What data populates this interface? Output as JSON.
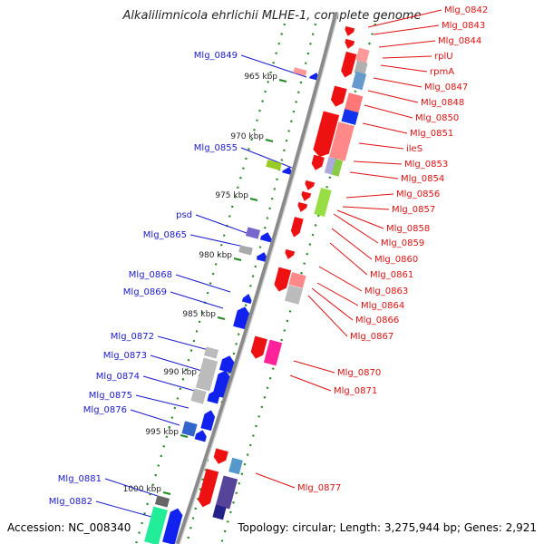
{
  "title": "Alkalilimnicola ehrlichii MLHE-1, complete genome",
  "footer": {
    "accession": "Accession: NC_008340",
    "summary": "Topology: circular; Length: 3,275,944 bp; Genes: 2,921"
  },
  "colors": {
    "plus_strand_label": "#1a1acc",
    "minus_strand_label": "#dd1111",
    "backbone": "#8a8a8a",
    "tick": "#228822"
  },
  "tick_labels": [
    "965 kbp",
    "970 kbp",
    "975 kbp",
    "980 kbp",
    "985 kbp",
    "990 kbp",
    "995 kbp",
    "1000 kbp"
  ],
  "left_genes": [
    "Mlg_0849",
    "Mlg_0855",
    "psd",
    "Mlg_0865",
    "Mlg_0868",
    "Mlg_0869",
    "Mlg_0872",
    "Mlg_0873",
    "Mlg_0874",
    "Mlg_0875",
    "Mlg_0876",
    "Mlg_0881",
    "Mlg_0882"
  ],
  "right_genes": [
    "Mlg_0842",
    "Mlg_0843",
    "Mlg_0844",
    "rplU",
    "rpmA",
    "Mlg_0847",
    "Mlg_0848",
    "Mlg_0850",
    "Mlg_0851",
    "ileS",
    "Mlg_0853",
    "Mlg_0854",
    "Mlg_0856",
    "Mlg_0857",
    "Mlg_0858",
    "Mlg_0859",
    "Mlg_0860",
    "Mlg_0861",
    "Mlg_0863",
    "Mlg_0864",
    "Mlg_0866",
    "Mlg_0867",
    "Mlg_0870",
    "Mlg_0871",
    "Mlg_0877"
  ]
}
